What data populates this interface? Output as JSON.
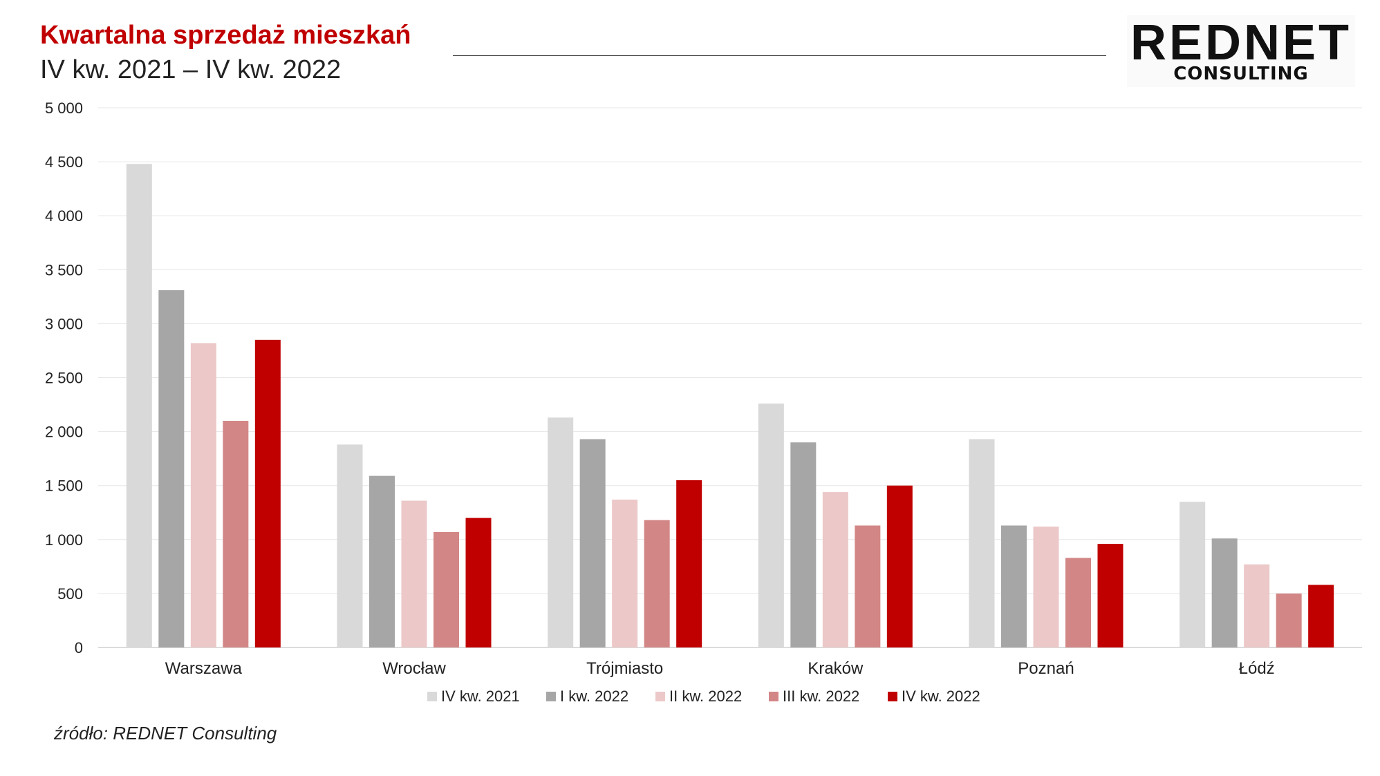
{
  "header": {
    "title": "Kwartalna sprzedaż mieszkań",
    "subtitle": "IV kw. 2021 – IV kw. 2022"
  },
  "logo": {
    "main": "REDNET",
    "sub": "CONSULTING"
  },
  "source": "źródło: REDNET Consulting",
  "colors": {
    "title": "#c00000",
    "series": [
      "#d9d9d9",
      "#a6a6a6",
      "#ecc8c8",
      "#d38686",
      "#c00000"
    ],
    "grid": "#e6e6e6",
    "axis": "#cfcfcf"
  },
  "chart_data": {
    "type": "bar",
    "categories": [
      "Warszawa",
      "Wrocław",
      "Trójmiasto",
      "Kraków",
      "Poznań",
      "Łódź"
    ],
    "series": [
      {
        "name": "IV kw. 2021",
        "values": [
          4480,
          1880,
          2130,
          2260,
          1930,
          1350
        ]
      },
      {
        "name": "I kw. 2022",
        "values": [
          3310,
          1590,
          1930,
          1900,
          1130,
          1010
        ]
      },
      {
        "name": "II kw. 2022",
        "values": [
          2820,
          1360,
          1370,
          1440,
          1120,
          770
        ]
      },
      {
        "name": "III kw. 2022",
        "values": [
          2100,
          1070,
          1180,
          1130,
          830,
          500
        ]
      },
      {
        "name": "IV kw. 2022",
        "values": [
          2850,
          1200,
          1550,
          1500,
          960,
          580
        ]
      }
    ],
    "yticks": [
      "0",
      "500",
      "1 000",
      "1 500",
      "2 000",
      "2 500",
      "3 000",
      "3 500",
      "4 000",
      "4 500",
      "5 000"
    ],
    "ylim": [
      0,
      5000
    ],
    "title": "Kwartalna sprzedaż mieszkań",
    "subtitle": "IV kw. 2021 – IV kw. 2022",
    "xlabel": "",
    "ylabel": "",
    "grid": true,
    "legend_position": "bottom"
  }
}
